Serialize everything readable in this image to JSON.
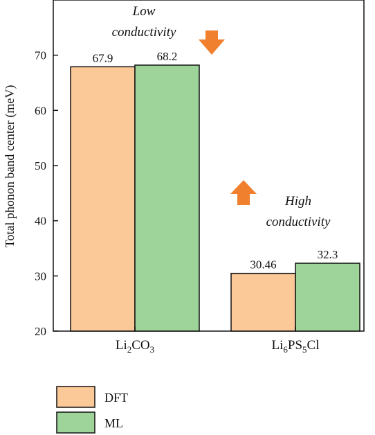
{
  "chart_data": {
    "type": "bar",
    "categories": [
      {
        "base": "Li",
        "parts": [
          {
            "t": "Li",
            "sub": false
          },
          {
            "t": "2",
            "sub": true
          },
          {
            "t": "CO",
            "sub": false
          },
          {
            "t": "3",
            "sub": true
          }
        ]
      },
      {
        "base": "Li",
        "parts": [
          {
            "t": "Li",
            "sub": false
          },
          {
            "t": "6",
            "sub": true
          },
          {
            "t": "PS",
            "sub": false
          },
          {
            "t": "5",
            "sub": true
          },
          {
            "t": "Cl",
            "sub": false
          }
        ]
      }
    ],
    "series": [
      {
        "name": "DFT",
        "color": "#FBC898",
        "values": [
          67.9,
          30.46
        ],
        "labels": [
          "67.9",
          "30.46"
        ]
      },
      {
        "name": "ML",
        "color": "#9ED39A",
        "values": [
          68.2,
          32.3
        ],
        "labels": [
          "68.2",
          "32.3"
        ]
      }
    ],
    "ylabel": "Total phonon band center (meV)",
    "ylim": [
      20,
      80
    ],
    "yticks": [
      20,
      30,
      40,
      50,
      60,
      70
    ],
    "annotations": [
      {
        "lines": [
          "Low",
          "conductivity"
        ],
        "arrow": "down",
        "arrow_color": "#F07F2E"
      },
      {
        "lines": [
          "High",
          "conductivity"
        ],
        "arrow": "up",
        "arrow_color": "#F07F2E"
      }
    ],
    "legend": {
      "position": "bottom-left"
    }
  }
}
